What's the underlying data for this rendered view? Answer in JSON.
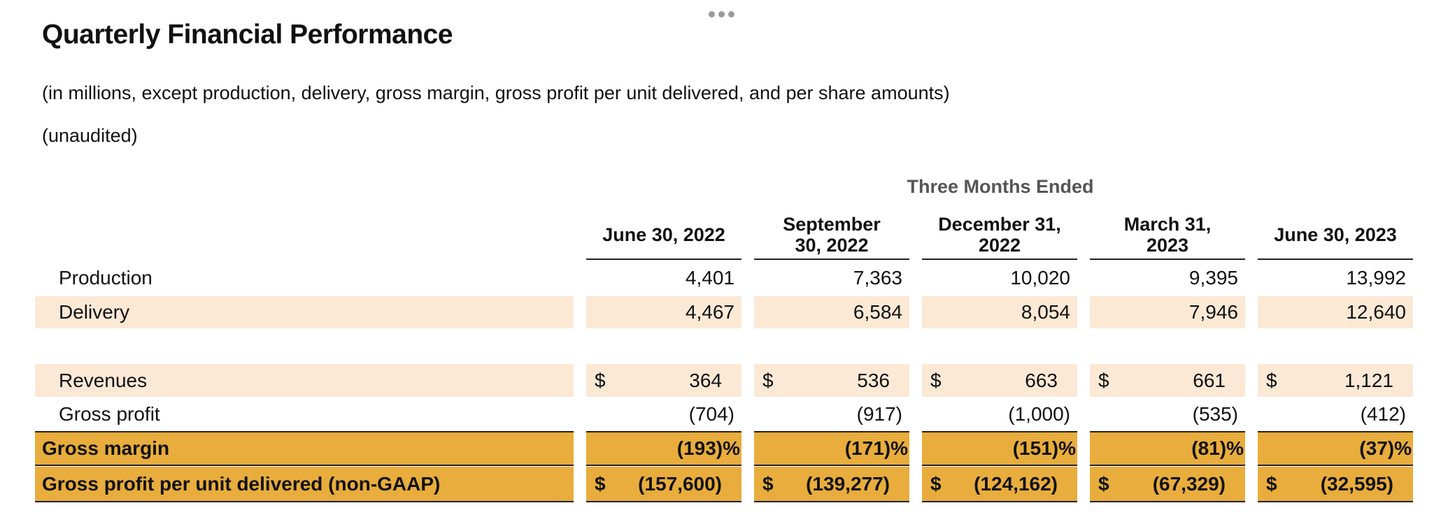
{
  "title": "Quarterly Financial Performance",
  "subtitle": "(in millions, except production, delivery, gross margin, gross profit per unit delivered, and per share amounts)",
  "note": "(unaudited)",
  "group_header": "Three Months Ended",
  "columns": [
    {
      "line1": "June 30, 2022",
      "line2": ""
    },
    {
      "line1": "September",
      "line2": "30, 2022"
    },
    {
      "line1": "December 31,",
      "line2": "2022"
    },
    {
      "line1": "March 31,",
      "line2": "2023"
    },
    {
      "line1": "June 30, 2023",
      "line2": ""
    }
  ],
  "rows": {
    "production": {
      "label": "Production",
      "values": [
        "4,401",
        "7,363",
        "10,020",
        "9,395",
        "13,992"
      ]
    },
    "delivery": {
      "label": "Delivery",
      "values": [
        "4,467",
        "6,584",
        "8,054",
        "7,946",
        "12,640"
      ]
    },
    "revenues": {
      "label": "Revenues",
      "currency": "$",
      "values": [
        "364",
        "536",
        "663",
        "661",
        "1,121"
      ]
    },
    "gross_profit": {
      "label": "Gross profit",
      "values": [
        "(704)",
        "(917)",
        "(1,000)",
        "(535)",
        "(412)"
      ]
    },
    "gross_margin": {
      "label": "Gross margin",
      "values": [
        "(193)%",
        "(171)%",
        "(151)%",
        "(81)%",
        "(37)%"
      ]
    },
    "gross_profit_per_unit": {
      "label": "Gross profit per unit delivered (non-GAAP)",
      "currency": "$",
      "values": [
        "(157,600)",
        "(139,277)",
        "(124,162)",
        "(67,329)",
        "(32,595)"
      ]
    }
  },
  "colors": {
    "shade": "#fbe9d6",
    "highlight": "#e8ad3c"
  }
}
